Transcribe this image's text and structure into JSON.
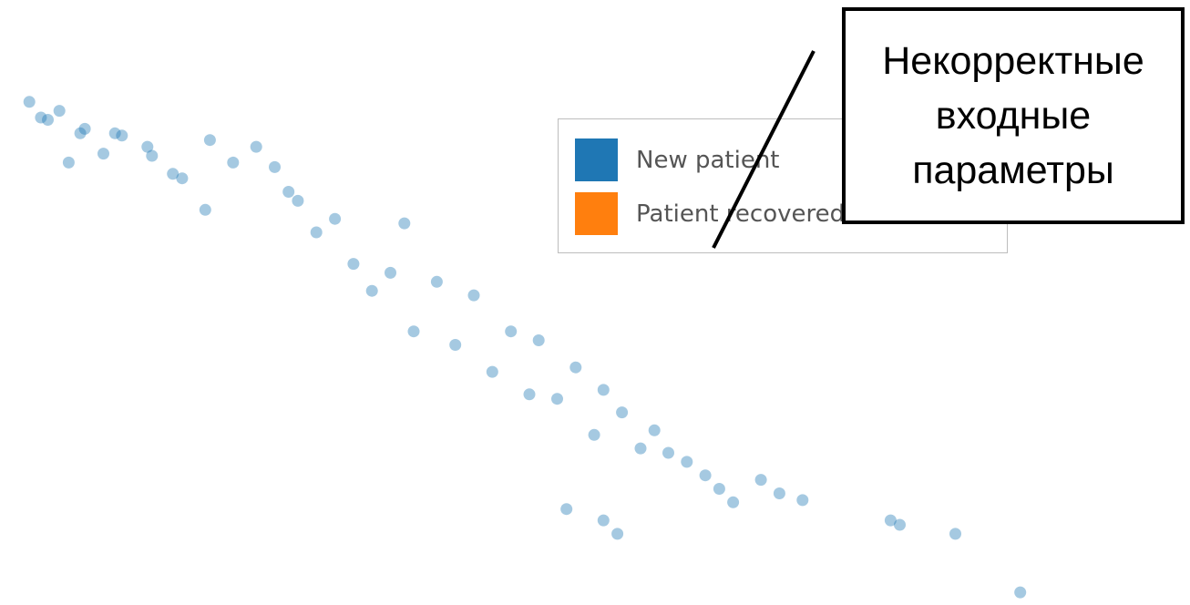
{
  "chart_data": {
    "type": "scatter",
    "title": "",
    "xlabel": "",
    "ylabel": "",
    "grid": false,
    "axes_visible": false,
    "legend_placement": "top-right",
    "series": [
      {
        "name": "New patient",
        "color": "#1f77b4",
        "marker_opacity": 0.4,
        "points": [
          [
            0.2,
            9.6
          ],
          [
            0.45,
            9.25
          ],
          [
            0.6,
            9.2
          ],
          [
            0.85,
            9.4
          ],
          [
            1.05,
            8.25
          ],
          [
            1.3,
            8.9
          ],
          [
            1.4,
            9.0
          ],
          [
            1.8,
            8.45
          ],
          [
            2.05,
            8.9
          ],
          [
            2.2,
            8.85
          ],
          [
            2.75,
            8.6
          ],
          [
            2.85,
            8.4
          ],
          [
            3.3,
            8.0
          ],
          [
            3.5,
            7.9
          ],
          [
            4.0,
            7.2
          ],
          [
            4.1,
            8.75
          ],
          [
            4.6,
            8.25
          ],
          [
            5.1,
            8.6
          ],
          [
            5.5,
            8.15
          ],
          [
            5.8,
            7.6
          ],
          [
            6.0,
            7.4
          ],
          [
            6.4,
            6.7
          ],
          [
            6.8,
            7.0
          ],
          [
            7.2,
            6.0
          ],
          [
            7.6,
            5.4
          ],
          [
            8.0,
            5.8
          ],
          [
            8.3,
            6.9
          ],
          [
            8.5,
            4.5
          ],
          [
            9.0,
            5.6
          ],
          [
            9.4,
            4.2
          ],
          [
            9.8,
            5.3
          ],
          [
            10.2,
            3.6
          ],
          [
            10.6,
            4.5
          ],
          [
            11.0,
            3.1
          ],
          [
            11.2,
            4.3
          ],
          [
            11.6,
            3.0
          ],
          [
            12.0,
            3.7
          ],
          [
            12.4,
            2.2
          ],
          [
            12.6,
            3.2
          ],
          [
            13.0,
            2.7
          ],
          [
            13.4,
            1.9
          ],
          [
            13.7,
            2.3
          ],
          [
            14.0,
            1.8
          ],
          [
            14.4,
            1.6
          ],
          [
            14.8,
            1.3
          ],
          [
            15.1,
            1.0
          ],
          [
            15.4,
            0.7
          ],
          [
            16.0,
            1.2
          ],
          [
            16.4,
            0.9
          ],
          [
            16.9,
            0.75
          ],
          [
            11.8,
            0.55
          ],
          [
            12.6,
            0.3
          ],
          [
            12.9,
            0.0
          ],
          [
            18.8,
            0.3
          ],
          [
            19.0,
            0.2
          ],
          [
            20.2,
            0.0
          ],
          [
            21.6,
            -1.3
          ]
        ]
      },
      {
        "name": "Patient recovered",
        "color": "#ff7f0e",
        "points": []
      }
    ]
  },
  "legend": {
    "items": [
      {
        "label": "New patient",
        "color": "#1f77b4"
      },
      {
        "label": "Patient recovered",
        "color": "#ff7f0e"
      }
    ]
  },
  "callout": {
    "text": "Некорректные\nвходные\nпараметры"
  }
}
